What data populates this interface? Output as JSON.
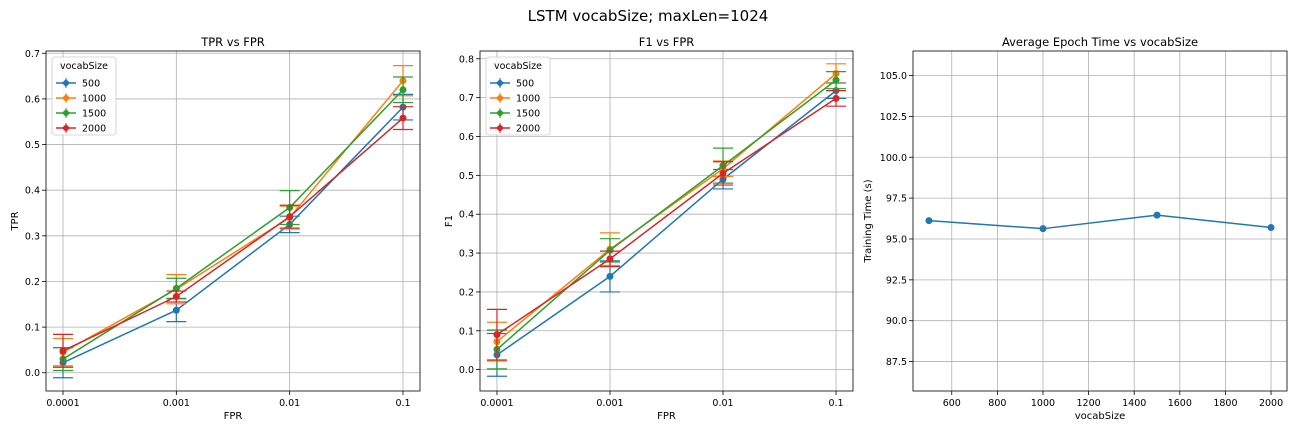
{
  "figure": {
    "title": "LSTM vocabSize; maxLen=1024"
  },
  "colors": {
    "500": "#1f77b4",
    "1000": "#ff7f0e",
    "1500": "#2ca02c",
    "2000": "#d62728"
  },
  "chart_data": [
    {
      "type": "line",
      "title": "TPR vs FPR",
      "xlabel": "FPR",
      "ylabel": "TPR",
      "x": [
        "0.0001",
        "0.001",
        "0.01",
        "0.1"
      ],
      "ylim": [
        -0.04,
        0.705
      ],
      "yticks": [
        "0.0",
        "0.1",
        "0.2",
        "0.3",
        "0.4",
        "0.5",
        "0.6",
        "0.7"
      ],
      "grid": true,
      "legend": {
        "title": "vocabSize",
        "position": "upper-left"
      },
      "series": [
        {
          "name": "500",
          "values": [
            0.022,
            0.137,
            0.325,
            0.582
          ],
          "errors": [
            0.033,
            0.025,
            0.018,
            0.028
          ]
        },
        {
          "name": "1000",
          "values": [
            0.045,
            0.183,
            0.34,
            0.64
          ],
          "errors": [
            0.03,
            0.032,
            0.025,
            0.033
          ]
        },
        {
          "name": "1500",
          "values": [
            0.03,
            0.185,
            0.362,
            0.62
          ],
          "errors": [
            0.025,
            0.022,
            0.037,
            0.028
          ]
        },
        {
          "name": "2000",
          "values": [
            0.048,
            0.167,
            0.342,
            0.558
          ],
          "errors": [
            0.036,
            0.012,
            0.025,
            0.025
          ]
        }
      ]
    },
    {
      "type": "line",
      "title": "F1 vs FPR",
      "xlabel": "FPR",
      "ylabel": "F1",
      "x": [
        "0.0001",
        "0.001",
        "0.01",
        "0.1"
      ],
      "ylim": [
        -0.055,
        0.82
      ],
      "yticks": [
        "0.0",
        "0.1",
        "0.2",
        "0.3",
        "0.4",
        "0.5",
        "0.6",
        "0.7",
        "0.8"
      ],
      "grid": true,
      "legend": {
        "title": "vocabSize",
        "position": "upper-left"
      },
      "series": [
        {
          "name": "500",
          "values": [
            0.038,
            0.24,
            0.49,
            0.718
          ],
          "errors": [
            0.055,
            0.04,
            0.025,
            0.02
          ]
        },
        {
          "name": "1000",
          "values": [
            0.072,
            0.31,
            0.517,
            0.762
          ],
          "errors": [
            0.05,
            0.042,
            0.02,
            0.025
          ]
        },
        {
          "name": "1500",
          "values": [
            0.052,
            0.307,
            0.525,
            0.745
          ],
          "errors": [
            0.05,
            0.03,
            0.045,
            0.022
          ]
        },
        {
          "name": "2000",
          "values": [
            0.09,
            0.285,
            0.505,
            0.698
          ],
          "errors": [
            0.065,
            0.02,
            0.03,
            0.02
          ]
        }
      ]
    },
    {
      "type": "line",
      "title": "Average Epoch Time vs vocabSize",
      "xlabel": "vocabSize",
      "ylabel": "Training Time (s)",
      "xlim": [
        430,
        2070
      ],
      "xticks": [
        600,
        800,
        1000,
        1200,
        1400,
        1600,
        1800,
        2000
      ],
      "ylim": [
        85.7,
        106.5
      ],
      "yticks": [
        "87.5",
        "90.0",
        "92.5",
        "95.0",
        "97.5",
        "100.0",
        "102.5",
        "105.0"
      ],
      "grid": true,
      "series": [
        {
          "x": [
            500,
            1000,
            1500,
            2000
          ],
          "values": [
            96.12,
            95.63,
            96.46,
            95.7
          ]
        }
      ]
    }
  ]
}
